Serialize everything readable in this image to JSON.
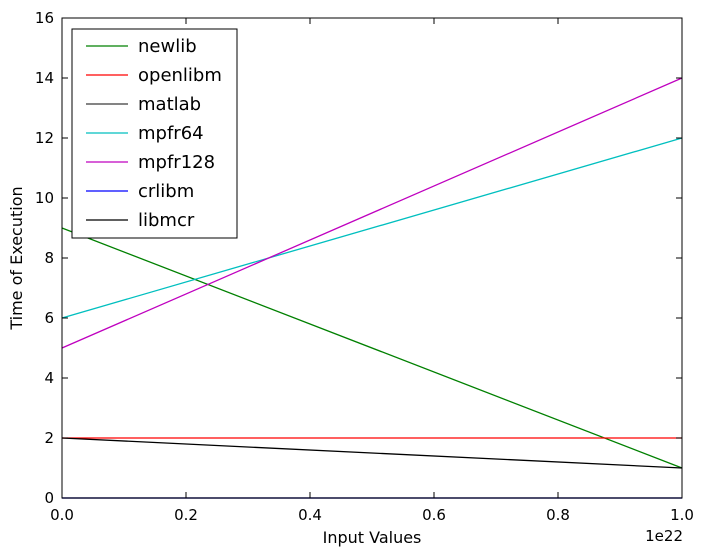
{
  "chart_data": {
    "type": "line",
    "xlabel": "Input Values",
    "ylabel": "Time of Execution",
    "x_offset_label": "1e22",
    "xlim": [
      0.0,
      1.0
    ],
    "ylim": [
      0,
      16
    ],
    "x_ticks": [
      0.0,
      0.2,
      0.4,
      0.6,
      0.8,
      1.0
    ],
    "x_tick_labels": [
      "0.0",
      "0.2",
      "0.4",
      "0.6",
      "0.8",
      "1.0"
    ],
    "y_ticks": [
      0,
      2,
      4,
      6,
      8,
      10,
      12,
      14,
      16
    ],
    "y_tick_labels": [
      "0",
      "2",
      "4",
      "6",
      "8",
      "10",
      "12",
      "14",
      "16"
    ],
    "grid": false,
    "legend_position": "top-left",
    "series": [
      {
        "name": "newlib",
        "color": "#008000",
        "x": [
          0.0,
          1.0
        ],
        "y": [
          9,
          1
        ]
      },
      {
        "name": "openlibm",
        "color": "#ff0000",
        "x": [
          0.0,
          1.0
        ],
        "y": [
          2,
          2
        ]
      },
      {
        "name": "matlab",
        "color": "#3a3a3a",
        "x": [
          0.0,
          1.0
        ],
        "y": [
          0,
          0
        ]
      },
      {
        "name": "mpfr64",
        "color": "#00bfbf",
        "x": [
          0.0,
          1.0
        ],
        "y": [
          6,
          12
        ]
      },
      {
        "name": "mpfr128",
        "color": "#bf00bf",
        "x": [
          0.0,
          1.0
        ],
        "y": [
          5,
          14
        ]
      },
      {
        "name": "crlibm",
        "color": "#0000ff",
        "x": [
          0.0,
          1.0
        ],
        "y": [
          0,
          0
        ]
      },
      {
        "name": "libmcr",
        "color": "#000000",
        "x": [
          0.0,
          1.0
        ],
        "y": [
          2,
          1
        ]
      }
    ]
  }
}
